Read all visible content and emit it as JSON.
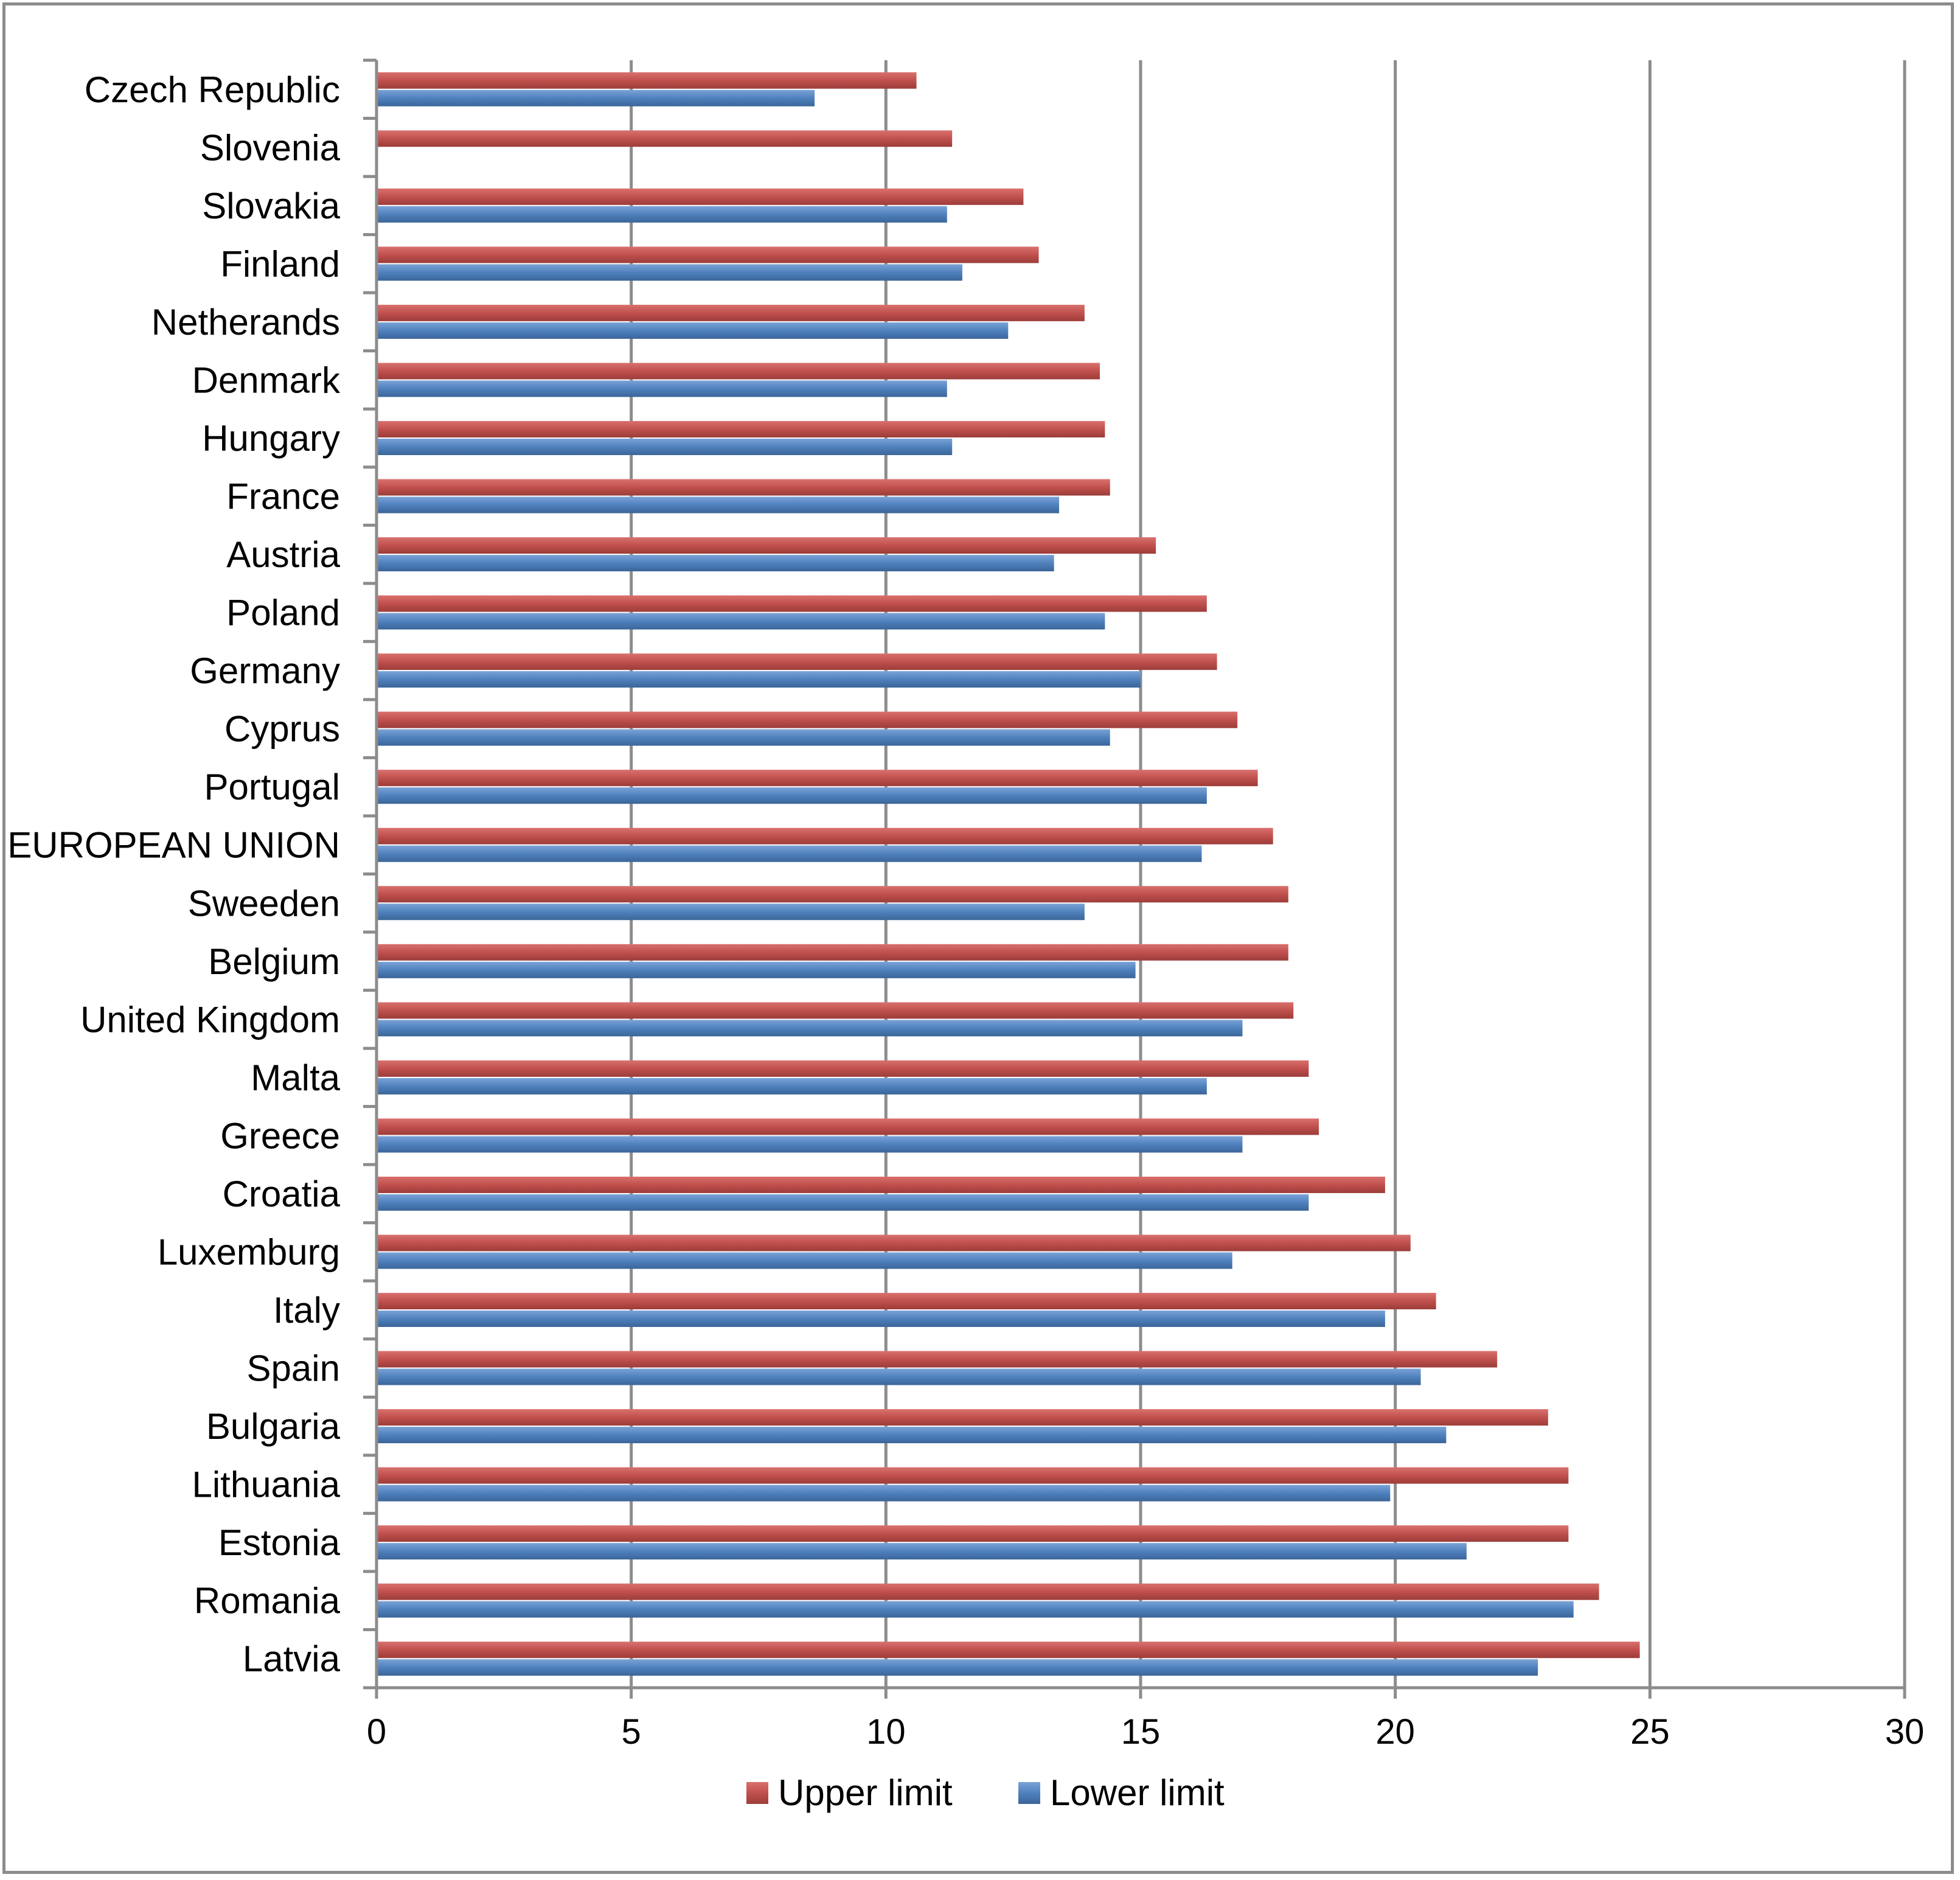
{
  "chart_data": {
    "type": "bar",
    "orientation": "horizontal",
    "title": "",
    "xlabel": "",
    "ylabel": "",
    "xlim": [
      0,
      30
    ],
    "x_ticks": [
      0,
      5,
      10,
      15,
      20,
      25,
      30
    ],
    "grid": true,
    "legend_position": "bottom",
    "categories": [
      "Czech Republic",
      "Slovenia",
      "Slovakia",
      "Finland",
      "Netherands",
      "Denmark",
      "Hungary",
      "France",
      "Austria",
      "Poland",
      "Germany",
      "Cyprus",
      "Portugal",
      "EUROPEAN UNION",
      "Sweeden",
      "Belgium",
      "United Kingdom",
      "Malta",
      "Greece",
      "Croatia",
      "Luxemburg",
      "Italy",
      "Spain",
      "Bulgaria",
      "Lithuania",
      "Estonia",
      "Romania",
      "Latvia"
    ],
    "series": [
      {
        "name": "Upper limit",
        "color": "#c0504d",
        "values": [
          10.6,
          11.3,
          12.7,
          13.0,
          13.9,
          14.2,
          14.3,
          14.4,
          15.3,
          16.3,
          16.5,
          16.9,
          17.3,
          17.6,
          17.9,
          17.9,
          18.0,
          18.3,
          18.5,
          19.8,
          20.3,
          20.8,
          22.0,
          23.0,
          23.4,
          23.4,
          24.0,
          24.8
        ]
      },
      {
        "name": "Lower limit",
        "color": "#4f81bd",
        "values": [
          8.6,
          null,
          11.2,
          11.5,
          12.4,
          11.2,
          11.3,
          13.4,
          13.3,
          14.3,
          15.0,
          14.4,
          16.3,
          16.2,
          13.9,
          14.9,
          17.0,
          16.3,
          17.0,
          18.3,
          16.8,
          19.8,
          20.5,
          21.0,
          19.9,
          21.4,
          23.5,
          22.8
        ]
      }
    ]
  }
}
